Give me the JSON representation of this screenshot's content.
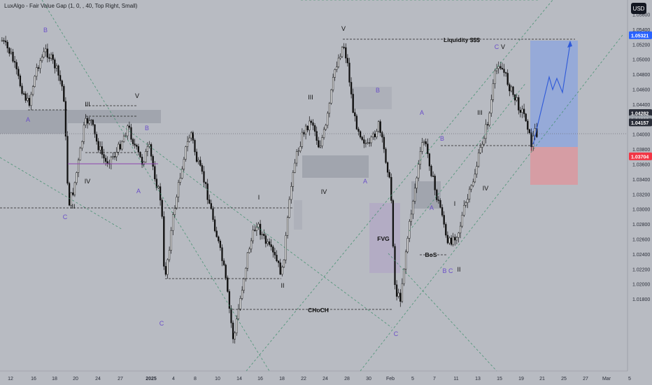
{
  "indicator_label": "LuxAlgo - Fair Value Gap (1, 0, , 40, Top Right, Small)",
  "currency": "USD",
  "chart_data": {
    "type": "candlestick",
    "y_ticks": [
      "1.05600",
      "1.05400",
      "1.05200",
      "1.05000",
      "1.04800",
      "1.04600",
      "1.04400",
      "1.04200",
      "1.04000",
      "1.03800",
      "1.03600",
      "1.03400",
      "1.03200",
      "1.03000",
      "1.02800",
      "1.02600",
      "1.02400",
      "1.02200",
      "1.02000",
      "1.01800"
    ],
    "ylim": [
      1.0168,
      1.0565
    ],
    "x_ticks": [
      "12",
      "16",
      "18",
      "20",
      "24",
      "27",
      "2025",
      "4",
      "8",
      "10",
      "14",
      "16",
      "18",
      "22",
      "24",
      "28",
      "30",
      "Feb",
      "5",
      "7",
      "11",
      "13",
      "15",
      "19",
      "21",
      "25",
      "27",
      "Mar",
      "5"
    ],
    "price_badges": [
      {
        "text": "1.05321",
        "value": 1.05321,
        "color": "#2962ff"
      },
      {
        "text": "1.04282",
        "value": 1.04282,
        "color": "#2a2e39"
      },
      {
        "text": "1.04200",
        "value": 1.042,
        "color": "#9aa0a8"
      },
      {
        "text": "1.04157",
        "value": 1.04157,
        "color": "#2a2e39"
      },
      {
        "text": "1.03704",
        "value": 1.03704,
        "color": "#f23645"
      }
    ],
    "labels": [
      {
        "text": "B",
        "color": "#6a4fc8"
      },
      {
        "text": "A",
        "color": "#6a4fc8"
      },
      {
        "text": "III",
        "color": "#111111"
      },
      {
        "text": "V",
        "color": "#111111"
      },
      {
        "text": "B",
        "color": "#6a4fc8"
      },
      {
        "text": "IV",
        "color": "#111111"
      },
      {
        "text": "A",
        "color": "#6a4fc8"
      },
      {
        "text": "C",
        "color": "#6a4fc8"
      },
      {
        "text": "II",
        "color": "#111111"
      },
      {
        "text": "C",
        "color": "#6a4fc8"
      },
      {
        "text": "I",
        "color": "#111111"
      },
      {
        "text": "II",
        "color": "#111111"
      },
      {
        "text": "III",
        "color": "#111111"
      },
      {
        "text": "IV",
        "color": "#111111"
      },
      {
        "text": "V",
        "color": "#111111"
      },
      {
        "text": "B",
        "color": "#6a4fc8"
      },
      {
        "text": "A",
        "color": "#6a4fc8"
      },
      {
        "text": "C",
        "color": "#6a4fc8"
      },
      {
        "text": "A",
        "color": "#6a4fc8"
      },
      {
        "text": "B",
        "color": "#6a4fc8"
      },
      {
        "text": "A",
        "color": "#6a4fc8"
      },
      {
        "text": "I",
        "color": "#111111"
      },
      {
        "text": "B C",
        "color": "#6a4fc8"
      },
      {
        "text": "II",
        "color": "#111111"
      },
      {
        "text": "III",
        "color": "#111111"
      },
      {
        "text": "IV",
        "color": "#111111"
      },
      {
        "text": "C",
        "color": "#6a4fc8"
      },
      {
        "text": "V",
        "color": "#111111"
      }
    ],
    "annotations": [
      {
        "text": "Liquidity $$$"
      },
      {
        "text": "FVG"
      },
      {
        "text": "BoS"
      },
      {
        "text": "CHoCH"
      }
    ]
  }
}
